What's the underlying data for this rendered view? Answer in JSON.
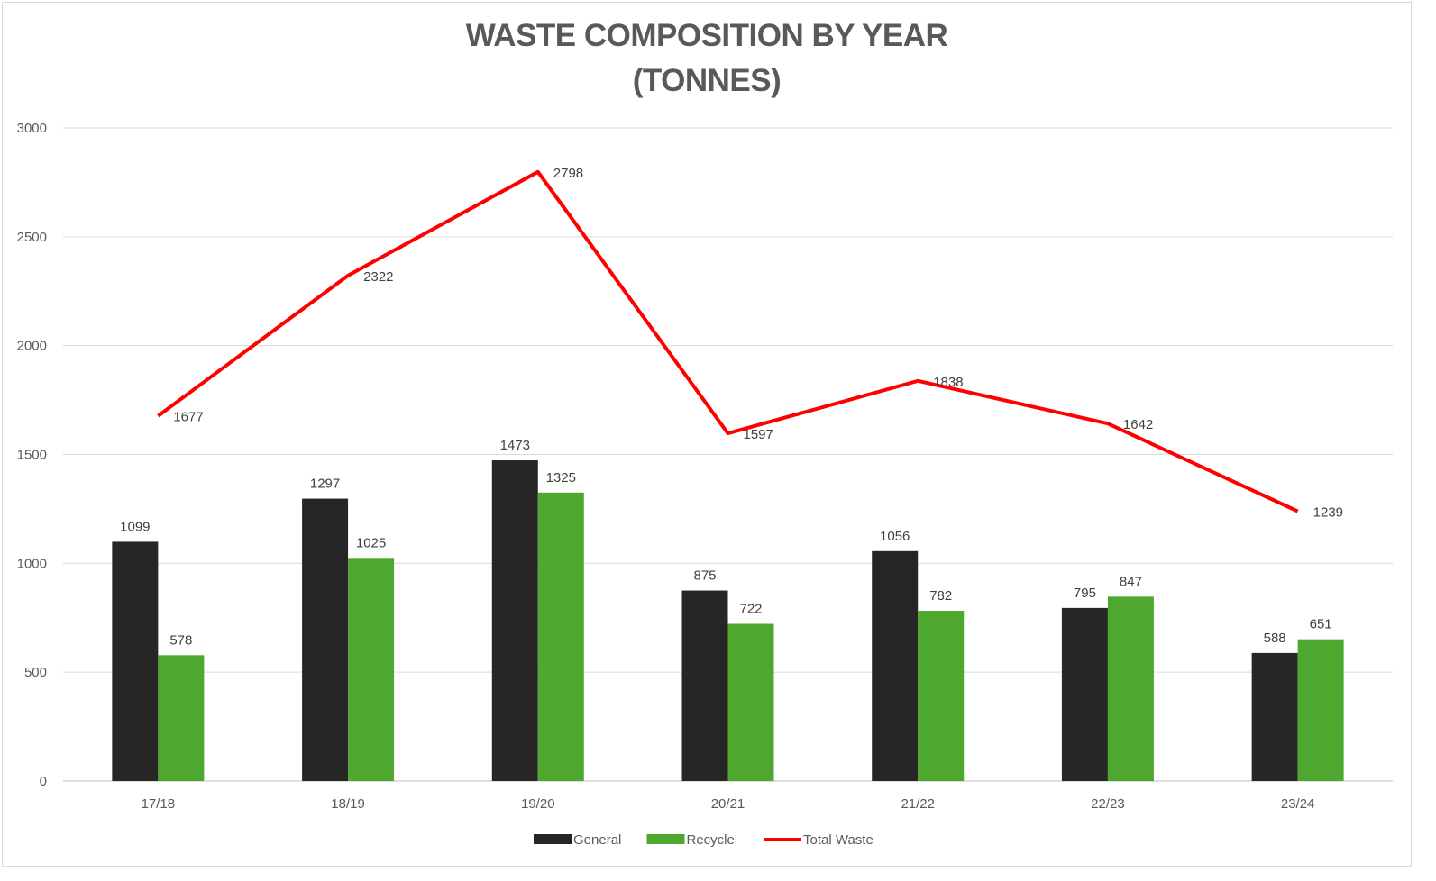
{
  "chart_data": {
    "type": "bar",
    "title": [
      "WASTE COMPOSITION BY YEAR",
      "(TONNES)"
    ],
    "xlabel": "",
    "ylabel": "",
    "ylim": [
      0,
      3000
    ],
    "yticks": [
      0,
      500,
      1000,
      1500,
      2000,
      2500,
      3000
    ],
    "grid": true,
    "legend_position": "bottom",
    "categories": [
      "17/18",
      "18/19",
      "19/20",
      "20/21",
      "21/22",
      "22/23",
      "23/24"
    ],
    "series": [
      {
        "name": "General",
        "type": "bar",
        "color": "#262626",
        "values": [
          1099,
          1297,
          1473,
          875,
          1056,
          795,
          588
        ]
      },
      {
        "name": "Recycle",
        "type": "bar",
        "color": "#4ea72e",
        "values": [
          578,
          1025,
          1325,
          722,
          782,
          847,
          651
        ]
      },
      {
        "name": "Total Waste",
        "type": "line",
        "color": "#ff0000",
        "values": [
          1677,
          2322,
          2798,
          1597,
          1838,
          1642,
          1239
        ]
      }
    ]
  }
}
